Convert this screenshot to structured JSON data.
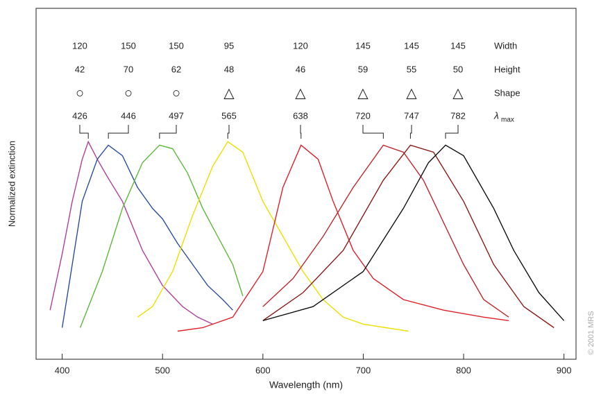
{
  "chart_data": {
    "type": "line",
    "xlabel": "Wavelength (nm)",
    "ylabel": "Normalized extinction",
    "xlim": [
      374,
      912
    ],
    "ylim": [
      0,
      1
    ],
    "xticks": [
      400,
      500,
      600,
      700,
      800,
      900
    ],
    "series": [
      {
        "color": "#b0409a",
        "x": [
          388,
          400,
          410,
          420,
          426,
          435,
          445,
          460,
          470,
          480,
          490,
          500,
          510,
          520,
          535,
          550
        ],
        "values": [
          0.14,
          0.3,
          0.45,
          0.57,
          0.62,
          0.57,
          0.52,
          0.45,
          0.38,
          0.31,
          0.26,
          0.21,
          0.18,
          0.15,
          0.12,
          0.1
        ]
      },
      {
        "color": "#2a4ea0",
        "x": [
          400,
          410,
          420,
          435,
          446,
          460,
          475,
          490,
          500,
          515,
          530,
          545,
          560,
          570
        ],
        "values": [
          0.09,
          0.27,
          0.45,
          0.57,
          0.61,
          0.58,
          0.49,
          0.43,
          0.4,
          0.33,
          0.27,
          0.21,
          0.17,
          0.14
        ]
      },
      {
        "color": "#5cb83a",
        "x": [
          418,
          440,
          460,
          480,
          497,
          510,
          525,
          540,
          555,
          570,
          580
        ],
        "values": [
          0.09,
          0.25,
          0.43,
          0.56,
          0.61,
          0.6,
          0.53,
          0.43,
          0.35,
          0.27,
          0.18
        ]
      },
      {
        "color": "#ece000",
        "x": [
          475,
          490,
          510,
          530,
          550,
          565,
          580,
          600,
          620,
          640,
          660,
          680,
          700,
          745
        ],
        "values": [
          0.12,
          0.15,
          0.25,
          0.41,
          0.55,
          0.62,
          0.59,
          0.45,
          0.35,
          0.25,
          0.17,
          0.12,
          0.1,
          0.08
        ]
      },
      {
        "color": "#e0202a",
        "x": [
          515,
          540,
          570,
          600,
          620,
          638,
          655,
          670,
          690,
          710,
          740,
          780,
          820,
          845
        ],
        "values": [
          0.08,
          0.09,
          0.12,
          0.25,
          0.49,
          0.61,
          0.57,
          0.45,
          0.31,
          0.23,
          0.17,
          0.14,
          0.12,
          0.11
        ]
      },
      {
        "color": "#c02830",
        "x": [
          600,
          630,
          660,
          690,
          720,
          740,
          760,
          780,
          800,
          820,
          845
        ],
        "values": [
          0.15,
          0.23,
          0.35,
          0.49,
          0.61,
          0.59,
          0.51,
          0.39,
          0.27,
          0.17,
          0.12
        ]
      },
      {
        "color": "#8b1a1a",
        "x": [
          600,
          640,
          680,
          720,
          747,
          770,
          800,
          830,
          860,
          890
        ],
        "values": [
          0.11,
          0.19,
          0.31,
          0.51,
          0.61,
          0.59,
          0.45,
          0.27,
          0.15,
          0.09
        ]
      },
      {
        "color": "#111111",
        "x": [
          600,
          650,
          700,
          740,
          765,
          782,
          800,
          830,
          850,
          875,
          900
        ],
        "values": [
          0.11,
          0.15,
          0.25,
          0.43,
          0.56,
          0.61,
          0.58,
          0.43,
          0.31,
          0.19,
          0.11
        ]
      }
    ]
  },
  "particle_table": {
    "row_labels": {
      "width": "Width",
      "height": "Height",
      "shape": "Shape",
      "lambda_symbol": "λ",
      "lambda_subscript": "max"
    },
    "columns": [
      {
        "width": 120,
        "height": 42,
        "shape": "○",
        "lambda_max": 426
      },
      {
        "width": 150,
        "height": 70,
        "shape": "○",
        "lambda_max": 446
      },
      {
        "width": 150,
        "height": 62,
        "shape": "○",
        "lambda_max": 497
      },
      {
        "width": 95,
        "height": 48,
        "shape": "△",
        "lambda_max": 565
      },
      {
        "width": 120,
        "height": 46,
        "shape": "△",
        "lambda_max": 638
      },
      {
        "width": 145,
        "height": 59,
        "shape": "△",
        "lambda_max": 720
      },
      {
        "width": 145,
        "height": 55,
        "shape": "△",
        "lambda_max": 747
      },
      {
        "width": 145,
        "height": 50,
        "shape": "△",
        "lambda_max": 782
      }
    ]
  },
  "copyright": "© 2001 MRS"
}
